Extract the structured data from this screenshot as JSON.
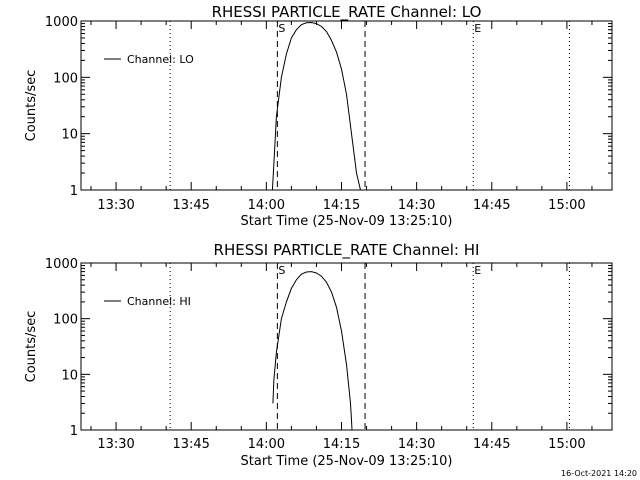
{
  "footer": {
    "timestamp": "16-Oct-2021 14:20"
  },
  "colors": {
    "background": "#ffffff",
    "foreground": "#000000"
  },
  "chart_data": [
    {
      "type": "line",
      "title": "RHESSI PARTICLE_RATE Channel: LO",
      "xlabel": "Start Time (25-Nov-09 13:25:10)",
      "ylabel": "Counts/sec",
      "yscale": "log",
      "xlim": [
        -2,
        104
      ],
      "ylim": [
        1,
        1000
      ],
      "xticks": [
        {
          "v": 5,
          "label": "13:30"
        },
        {
          "v": 20,
          "label": "13:45"
        },
        {
          "v": 35,
          "label": "14:00"
        },
        {
          "v": 50,
          "label": "14:15"
        },
        {
          "v": 65,
          "label": "14:30"
        },
        {
          "v": 80,
          "label": "14:45"
        },
        {
          "v": 95,
          "label": "15:00"
        }
      ],
      "yticks": [
        {
          "v": 1,
          "label": "1"
        },
        {
          "v": 10,
          "label": "10"
        },
        {
          "v": 100,
          "label": "100"
        },
        {
          "v": 1000,
          "label": "1000"
        }
      ],
      "dotted_lines": [
        15.8,
        76.3,
        95.5
      ],
      "dashed_lines": [
        37.2,
        54.7
      ],
      "markers": [
        {
          "x": 37.2,
          "label": "S"
        },
        {
          "x": 76.3,
          "label": "E"
        }
      ],
      "legend": {
        "position": "top-left",
        "label": "Channel: LO"
      },
      "series": [
        {
          "name": "Channel: LO",
          "x": [
            36.2,
            36.5,
            37.0,
            38.0,
            39.0,
            40.0,
            41.0,
            42.0,
            43.0,
            44.0,
            45.0,
            46.0,
            47.0,
            48.0,
            49.0,
            50.0,
            51.0,
            52.0,
            53.0,
            53.8
          ],
          "y": [
            1,
            3,
            20,
            100,
            260,
            500,
            700,
            860,
            930,
            940,
            900,
            800,
            650,
            450,
            280,
            140,
            50,
            10,
            2,
            1
          ]
        }
      ]
    },
    {
      "type": "line",
      "title": "RHESSI PARTICLE_RATE Channel: HI",
      "xlabel": "Start Time (25-Nov-09 13:25:10)",
      "ylabel": "Counts/sec",
      "yscale": "log",
      "xlim": [
        -2,
        104
      ],
      "ylim": [
        1,
        1000
      ],
      "xticks": [
        {
          "v": 5,
          "label": "13:30"
        },
        {
          "v": 20,
          "label": "13:45"
        },
        {
          "v": 35,
          "label": "14:00"
        },
        {
          "v": 50,
          "label": "14:15"
        },
        {
          "v": 65,
          "label": "14:30"
        },
        {
          "v": 80,
          "label": "14:45"
        },
        {
          "v": 95,
          "label": "15:00"
        }
      ],
      "yticks": [
        {
          "v": 1,
          "label": "1"
        },
        {
          "v": 10,
          "label": "10"
        },
        {
          "v": 100,
          "label": "100"
        },
        {
          "v": 1000,
          "label": "1000"
        }
      ],
      "dotted_lines": [
        15.8,
        76.3,
        95.5
      ],
      "dashed_lines": [
        37.2,
        54.7
      ],
      "markers": [
        {
          "x": 37.2,
          "label": "S"
        },
        {
          "x": 76.3,
          "label": "E"
        }
      ],
      "legend": {
        "position": "top-left",
        "label": "Channel: HI"
      },
      "series": [
        {
          "name": "Channel: HI",
          "x": [
            36.3,
            36.5,
            37.0,
            38.0,
            39.0,
            40.0,
            41.0,
            42.0,
            43.0,
            44.0,
            45.0,
            46.0,
            47.0,
            48.0,
            49.0,
            50.0,
            51.0,
            51.8,
            52.0,
            52.1
          ],
          "y": [
            3,
            8,
            25,
            100,
            200,
            350,
            500,
            630,
            690,
            700,
            660,
            580,
            450,
            300,
            160,
            60,
            15,
            3,
            1.5,
            1
          ]
        }
      ]
    }
  ]
}
